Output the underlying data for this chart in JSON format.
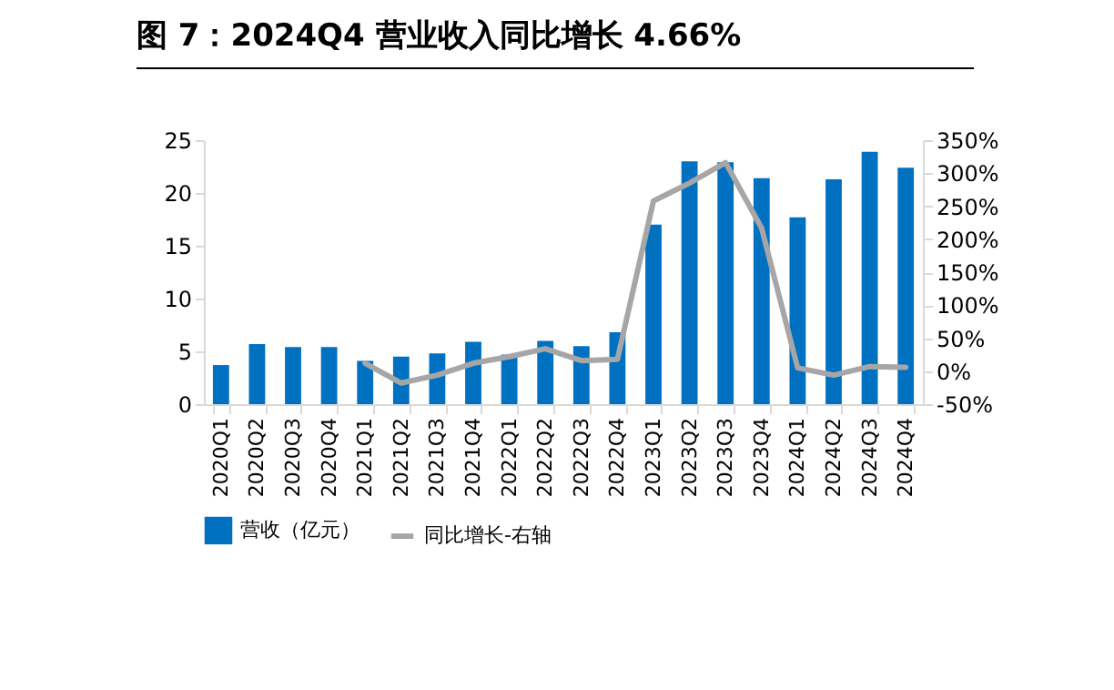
{
  "chart_data": {
    "type": "bar",
    "title": "图 7：2024Q4 营业收入同比增长 4.66%",
    "categories": [
      "2020Q1",
      "2020Q2",
      "2020Q3",
      "2020Q4",
      "2021Q1",
      "2021Q2",
      "2021Q3",
      "2021Q4",
      "2022Q1",
      "2022Q2",
      "2022Q3",
      "2022Q4",
      "2023Q1",
      "2023Q2",
      "2023Q3",
      "2023Q4",
      "2024Q1",
      "2024Q2",
      "2024Q3",
      "2024Q4"
    ],
    "series": [
      {
        "name": "营收（亿元）",
        "color": "#0070c0",
        "values": [
          3.7,
          5.7,
          5.4,
          5.4,
          4.1,
          4.5,
          4.8,
          5.9,
          4.7,
          6.0,
          5.5,
          6.8,
          17.0,
          23.0,
          22.9,
          21.4,
          17.7,
          21.3,
          23.9,
          22.4
        ]
      },
      {
        "name": "同比增长-右轴",
        "type": "line",
        "axis": "y2",
        "color": "#a6a6a6",
        "values": [
          null,
          null,
          null,
          null,
          12,
          -18,
          -6,
          12,
          22,
          34,
          16,
          18,
          258,
          285,
          316,
          217,
          5,
          -6,
          7,
          6
        ]
      }
    ],
    "ylim": [
      0,
      25
    ],
    "yticks": [
      0,
      5,
      10,
      15,
      20,
      25
    ],
    "y2lim": [
      -50,
      350
    ],
    "y2ticks": [
      {
        "value": -50,
        "label": "-50%"
      },
      {
        "value": 0,
        "label": "0%"
      },
      {
        "value": 50,
        "label": "50%"
      },
      {
        "value": 100,
        "label": "100%"
      },
      {
        "value": 150,
        "label": "150%"
      },
      {
        "value": 200,
        "label": "200%"
      },
      {
        "value": 250,
        "label": "250%"
      },
      {
        "value": 300,
        "label": "300%"
      },
      {
        "value": 350,
        "label": "350%"
      }
    ],
    "grid": false,
    "legend": "bottom"
  }
}
